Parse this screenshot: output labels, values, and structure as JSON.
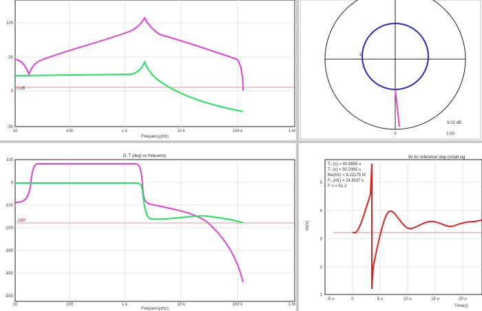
{
  "panels": {
    "mag": {
      "y_ticks": [
        "100",
        "50",
        "0",
        "-50"
      ],
      "x_ticks": [
        "10",
        "100",
        "1 k",
        "10 k",
        "100 k",
        "1 M"
      ],
      "xlabel": "Frequency(Hz)",
      "ref_label": "0 dB"
    },
    "phase": {
      "title": "G, T (deg) vs frequency",
      "y_ticks": [
        "100",
        "0",
        "-100",
        "-200",
        "-300",
        "-400",
        "-500"
      ],
      "x_ticks": [
        "10",
        "100",
        "1 k",
        "10 k",
        "100 k",
        "1 M"
      ],
      "xlabel": "Frequency(Hz)",
      "ref_label": "-180°"
    },
    "nyquist": {
      "db_label": "6.02 dB",
      "x_ticks": [
        "0",
        "2.00"
      ],
      "point_label": "-1"
    },
    "step": {
      "title": "Vo for reference step (small sig",
      "ylabel": "Vo(V)",
      "xlabel": "Time(s)",
      "x_ticks": [
        "-5 u",
        "0",
        "5 u",
        "10 u",
        "15 u",
        "20 u"
      ],
      "y_ticks": [
        "5",
        "4",
        "3",
        "2",
        "1"
      ],
      "annotations": [
        "T₀ (s) = 40.9856 u",
        "T₁ (s) = 90.2066 u",
        "Bw(Hz) = 6.22175 M",
        "F₀ (Hz) = 24.3037 k",
        "F ≡ = 51.2"
      ]
    }
  },
  "colors": {
    "magenta": "#e23fd8",
    "green": "#1ee35a",
    "blue": "#2424c8",
    "red": "#e02020",
    "grid": "#d9d9d9",
    "axis": "#222222"
  }
}
